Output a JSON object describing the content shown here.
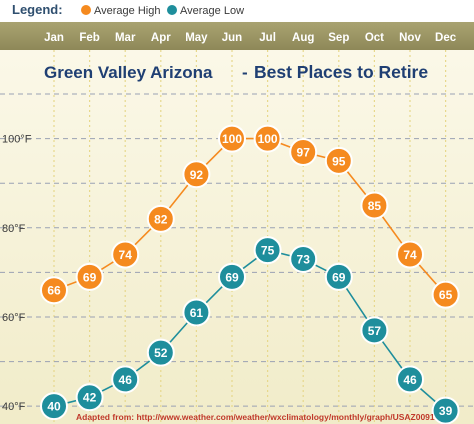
{
  "legend": {
    "label": "Legend:",
    "colors": {
      "high": "#f58a1f",
      "low": "#1e8e9c"
    }
  },
  "source_note": "Adapted from:  http://www.weather.com/weather/wxclimatology/monthly/graph/USAZ0091",
  "chart_data": {
    "type": "line",
    "title": "Green Valley Arizona",
    "title_separator": "-",
    "subtitle": "Best Places to Retire",
    "categories": [
      "Jan",
      "Feb",
      "Mar",
      "Apr",
      "May",
      "Jun",
      "Jul",
      "Aug",
      "Sep",
      "Oct",
      "Nov",
      "Dec"
    ],
    "series": [
      {
        "name": "Average High",
        "values": [
          66,
          69,
          74,
          82,
          92,
          100,
          100,
          97,
          95,
          85,
          74,
          65
        ]
      },
      {
        "name": "Average Low",
        "values": [
          40,
          42,
          46,
          52,
          61,
          69,
          75,
          73,
          69,
          57,
          46,
          39
        ]
      }
    ],
    "y_ticks": [
      {
        "value": 100,
        "label": "100°F"
      },
      {
        "value": 80,
        "label": "80°F"
      },
      {
        "value": 60,
        "label": "60°F"
      },
      {
        "value": 40,
        "label": "40°F"
      }
    ],
    "ylim": [
      36,
      110
    ],
    "grid": true,
    "legend_position": "top-left"
  }
}
